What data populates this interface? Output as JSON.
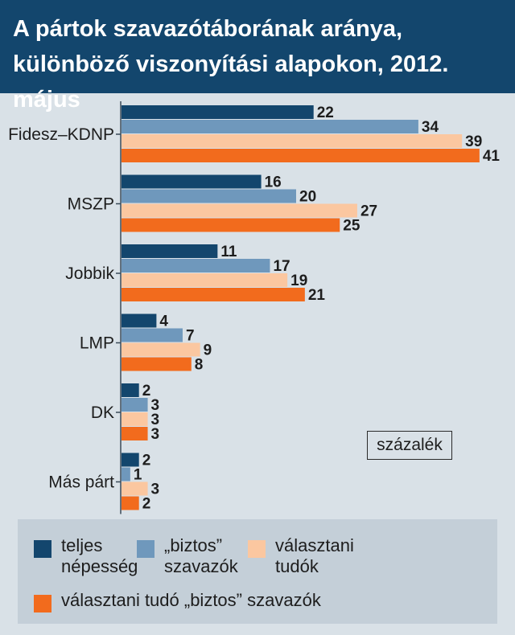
{
  "title": "A pártok szavazótáborának aránya, különböző viszonyítási alapokon, 2012. május",
  "unit_label": "százalék",
  "colors": {
    "header_bg": "#13466d",
    "background": "#d9e1e7",
    "legend_bg": "#c4cfd8"
  },
  "chart_data": {
    "type": "bar",
    "orientation": "horizontal",
    "title": "A pártok szavazótáborának aránya, különböző viszonyítási alapokon, 2012. május",
    "value_unit": "százalék",
    "categories": [
      "Fidesz–KDNP",
      "MSZP",
      "Jobbik",
      "LMP",
      "DK",
      "Más párt"
    ],
    "series": [
      {
        "name": "teljes népesség",
        "color": "#13466d",
        "values": [
          22,
          16,
          11,
          4,
          2,
          2
        ]
      },
      {
        "name": "„biztos” szavazók",
        "color": "#6f98bc",
        "values": [
          34,
          20,
          17,
          7,
          3,
          1
        ]
      },
      {
        "name": "választani tudók",
        "color": "#fbc7a0",
        "values": [
          39,
          27,
          19,
          9,
          3,
          3
        ]
      },
      {
        "name": "választani tudó „biztos” szavazók",
        "color": "#f26b1d",
        "values": [
          41,
          25,
          21,
          8,
          3,
          2
        ]
      }
    ],
    "xlim": [
      0,
      45
    ],
    "grid": false,
    "legend_position": "bottom"
  },
  "legend": [
    {
      "label": "teljes\nnépesség",
      "color": "#13466d"
    },
    {
      "label": "„biztos”\nszavazók",
      "color": "#6f98bc"
    },
    {
      "label": "választani\ntudók",
      "color": "#fbc7a0"
    },
    {
      "label": "választani tudó „biztos” szavazók",
      "color": "#f26b1d"
    }
  ]
}
